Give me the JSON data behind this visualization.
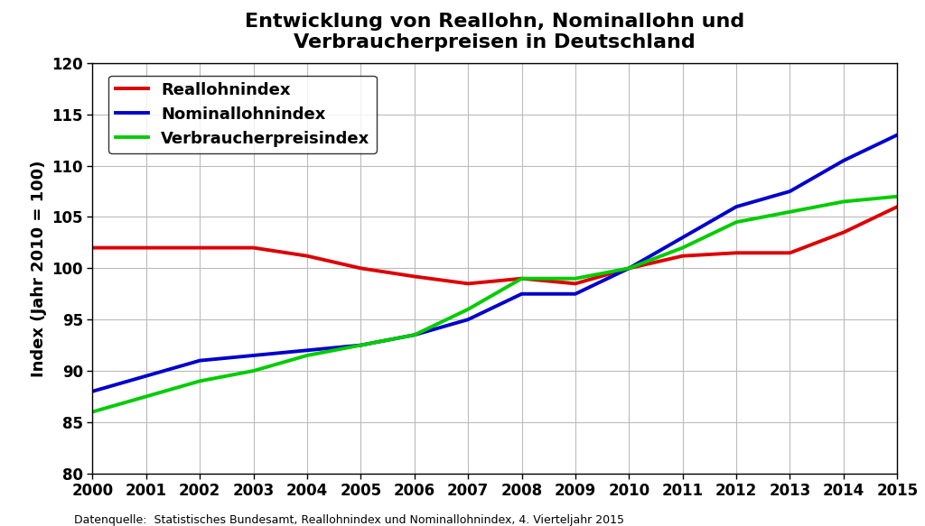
{
  "title": "Entwicklung von Reallohn, Nominallohn und\nVerbraucherpreisen in Deutschland",
  "ylabel": "Index (Jahr 2010 = 100)",
  "source": "Datenquelle:  Statistisches Bundesamt, Reallohnindex und Nominallohnindex, 4. Vierteljahr 2015",
  "years": [
    2000,
    2001,
    2002,
    2003,
    2004,
    2005,
    2006,
    2007,
    2008,
    2009,
    2010,
    2011,
    2012,
    2013,
    2014,
    2015
  ],
  "reallohn": [
    102.0,
    102.0,
    102.0,
    102.0,
    101.2,
    100.0,
    99.2,
    98.5,
    99.0,
    98.5,
    100.0,
    101.2,
    101.5,
    101.5,
    103.5,
    106.0
  ],
  "nominallohn": [
    88.0,
    89.5,
    91.0,
    91.5,
    92.0,
    92.5,
    93.5,
    95.0,
    97.5,
    97.5,
    100.0,
    103.0,
    106.0,
    107.5,
    110.5,
    113.0
  ],
  "verbraucherpreis": [
    86.0,
    87.5,
    89.0,
    90.0,
    91.5,
    92.5,
    93.5,
    96.0,
    99.0,
    99.0,
    100.0,
    102.0,
    104.5,
    105.5,
    106.5,
    107.0
  ],
  "ylim": [
    80,
    120
  ],
  "yticks": [
    80,
    85,
    90,
    95,
    100,
    105,
    110,
    115,
    120
  ],
  "line_colors": {
    "reallohn": "#dd0000",
    "nominallohn": "#0000cc",
    "verbraucherpreis": "#00cc00"
  },
  "line_width": 2.8,
  "legend_labels": [
    "Reallohnindex",
    "Nominallohnindex",
    "Verbraucherpreisindex"
  ],
  "background_color": "#ffffff",
  "grid_color": "#bbbbbb",
  "title_fontsize": 16,
  "axis_fontsize": 13,
  "tick_fontsize": 12,
  "legend_fontsize": 13,
  "source_fontsize": 9
}
